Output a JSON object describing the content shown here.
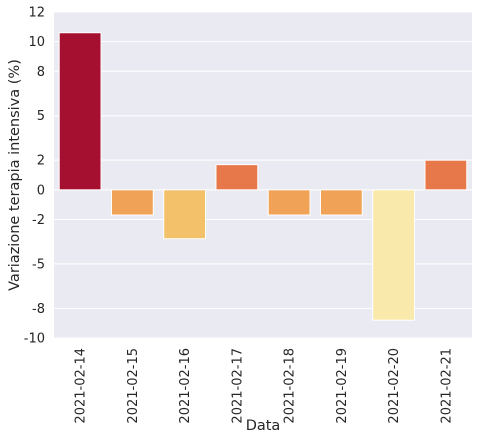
{
  "chart_data": {
    "type": "bar",
    "title": "",
    "xlabel": "Data",
    "ylabel": "Variazione terapia intensiva (%)",
    "categories": [
      "2021-02-14",
      "2021-02-15",
      "2021-02-16",
      "2021-02-17",
      "2021-02-18",
      "2021-02-19",
      "2021-02-20",
      "2021-02-21"
    ],
    "values": [
      10.6,
      -1.7,
      -3.3,
      1.7,
      -1.7,
      -1.7,
      -8.8,
      2.0
    ],
    "bar_colors": [
      "#a50f30",
      "#f0a357",
      "#f2c169",
      "#e6784a",
      "#f0a357",
      "#f0a357",
      "#f9eaac",
      "#e6784a"
    ],
    "ylim": [
      -10,
      12
    ],
    "yticks": [
      -10,
      -8,
      -5,
      -2,
      0,
      2,
      5,
      8,
      10,
      12
    ],
    "ytick_labels": [
      "-10",
      "-8",
      "-5",
      "-2",
      "0",
      "2",
      "5",
      "8",
      "10",
      "12"
    ],
    "grid": true,
    "background_color": "#eaeaf2",
    "grid_color": "#ffffff",
    "legend": "none"
  }
}
